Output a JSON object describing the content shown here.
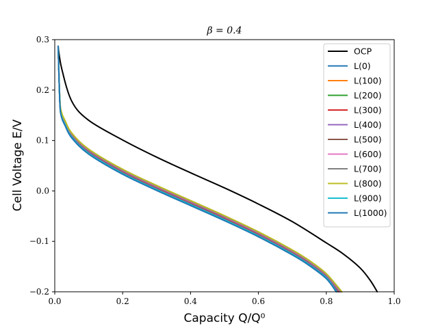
{
  "chart_data": {
    "type": "line",
    "title": "β = 0.4",
    "xlabel": "Capacity Q/Q⁰",
    "ylabel": "Cell Voltage E/V",
    "xlim": [
      0.0,
      1.0
    ],
    "ylim": [
      -0.2,
      0.3
    ],
    "xticks": [
      "0.0",
      "0.2",
      "0.4",
      "0.6",
      "0.8",
      "1.0"
    ],
    "yticks": [
      "−0.2",
      "−0.1",
      "0.0",
      "0.1",
      "0.2",
      "0.3"
    ],
    "grid": false,
    "legend_position": "top-right",
    "series": [
      {
        "name": "OCP",
        "color": "#000000",
        "x": [
          0.01,
          0.02,
          0.05,
          0.1,
          0.2,
          0.3,
          0.4,
          0.5,
          0.6,
          0.7,
          0.8,
          0.85,
          0.9,
          0.93,
          0.95
        ],
        "y": [
          0.287,
          0.244,
          0.178,
          0.14,
          0.101,
          0.067,
          0.036,
          0.006,
          -0.026,
          -0.061,
          -0.103,
          -0.125,
          -0.153,
          -0.178,
          -0.2
        ]
      },
      {
        "name": "L(0)",
        "color": "#1f77b4",
        "x": [
          0.01,
          0.015,
          0.02,
          0.03,
          0.05,
          0.1,
          0.2,
          0.3,
          0.4,
          0.5,
          0.6,
          0.7,
          0.75,
          0.8,
          0.83
        ],
        "y": [
          0.287,
          0.175,
          0.148,
          0.132,
          0.107,
          0.075,
          0.035,
          0.003,
          -0.027,
          -0.057,
          -0.089,
          -0.125,
          -0.146,
          -0.172,
          -0.2
        ]
      },
      {
        "name": "L(100)",
        "color": "#ff7f0e",
        "x": [
          0.01,
          0.015,
          0.02,
          0.03,
          0.05,
          0.1,
          0.2,
          0.3,
          0.4,
          0.5,
          0.6,
          0.7,
          0.75,
          0.8,
          0.832
        ],
        "y": [
          0.287,
          0.176,
          0.149,
          0.133,
          0.108,
          0.076,
          0.036,
          0.004,
          -0.026,
          -0.056,
          -0.088,
          -0.124,
          -0.145,
          -0.171,
          -0.2
        ]
      },
      {
        "name": "L(200)",
        "color": "#2ca02c",
        "x": [
          0.01,
          0.015,
          0.02,
          0.03,
          0.05,
          0.1,
          0.2,
          0.3,
          0.4,
          0.5,
          0.6,
          0.7,
          0.75,
          0.8,
          0.834
        ],
        "y": [
          0.287,
          0.177,
          0.15,
          0.134,
          0.109,
          0.077,
          0.037,
          0.005,
          -0.025,
          -0.055,
          -0.087,
          -0.123,
          -0.144,
          -0.17,
          -0.2
        ]
      },
      {
        "name": "L(300)",
        "color": "#d62728",
        "x": [
          0.01,
          0.015,
          0.02,
          0.03,
          0.05,
          0.1,
          0.2,
          0.3,
          0.4,
          0.5,
          0.6,
          0.7,
          0.75,
          0.8,
          0.836
        ],
        "y": [
          0.287,
          0.178,
          0.151,
          0.135,
          0.11,
          0.078,
          0.038,
          0.006,
          -0.024,
          -0.054,
          -0.086,
          -0.122,
          -0.143,
          -0.169,
          -0.2
        ]
      },
      {
        "name": "L(400)",
        "color": "#9467bd",
        "x": [
          0.01,
          0.015,
          0.02,
          0.03,
          0.05,
          0.1,
          0.2,
          0.3,
          0.4,
          0.5,
          0.6,
          0.7,
          0.75,
          0.8,
          0.838
        ],
        "y": [
          0.287,
          0.179,
          0.152,
          0.136,
          0.111,
          0.079,
          0.039,
          0.007,
          -0.023,
          -0.053,
          -0.085,
          -0.121,
          -0.142,
          -0.168,
          -0.2
        ]
      },
      {
        "name": "L(500)",
        "color": "#8c564b",
        "x": [
          0.01,
          0.015,
          0.02,
          0.03,
          0.05,
          0.1,
          0.2,
          0.3,
          0.4,
          0.5,
          0.6,
          0.7,
          0.75,
          0.8,
          0.84
        ],
        "y": [
          0.287,
          0.18,
          0.153,
          0.137,
          0.112,
          0.08,
          0.04,
          0.008,
          -0.022,
          -0.052,
          -0.084,
          -0.12,
          -0.141,
          -0.167,
          -0.2
        ]
      },
      {
        "name": "L(600)",
        "color": "#e377c2",
        "x": [
          0.01,
          0.015,
          0.02,
          0.03,
          0.05,
          0.1,
          0.2,
          0.3,
          0.4,
          0.5,
          0.6,
          0.7,
          0.75,
          0.8,
          0.842
        ],
        "y": [
          0.287,
          0.181,
          0.154,
          0.138,
          0.113,
          0.081,
          0.041,
          0.009,
          -0.021,
          -0.051,
          -0.083,
          -0.119,
          -0.14,
          -0.166,
          -0.2
        ]
      },
      {
        "name": "L(700)",
        "color": "#7f7f7f",
        "x": [
          0.01,
          0.015,
          0.02,
          0.03,
          0.05,
          0.1,
          0.2,
          0.3,
          0.4,
          0.5,
          0.6,
          0.7,
          0.75,
          0.8,
          0.844
        ],
        "y": [
          0.287,
          0.182,
          0.155,
          0.139,
          0.114,
          0.082,
          0.042,
          0.01,
          -0.02,
          -0.05,
          -0.082,
          -0.118,
          -0.139,
          -0.165,
          -0.2
        ]
      },
      {
        "name": "L(800)",
        "color": "#bcbd22",
        "x": [
          0.01,
          0.015,
          0.02,
          0.03,
          0.05,
          0.1,
          0.2,
          0.3,
          0.4,
          0.5,
          0.6,
          0.7,
          0.75,
          0.8,
          0.846
        ],
        "y": [
          0.287,
          0.183,
          0.156,
          0.14,
          0.115,
          0.083,
          0.043,
          0.011,
          -0.019,
          -0.049,
          -0.081,
          -0.117,
          -0.138,
          -0.164,
          -0.2
        ]
      },
      {
        "name": "L(900)",
        "color": "#17becf",
        "x": [
          0.01,
          0.015,
          0.02,
          0.03,
          0.05,
          0.1,
          0.2,
          0.3,
          0.4,
          0.5,
          0.6,
          0.7,
          0.75,
          0.8,
          0.831
        ],
        "y": [
          0.287,
          0.176,
          0.148,
          0.132,
          0.107,
          0.075,
          0.035,
          0.003,
          -0.027,
          -0.057,
          -0.089,
          -0.125,
          -0.146,
          -0.172,
          -0.2
        ]
      },
      {
        "name": "L(1000)",
        "color": "#1f77b4",
        "x": [
          0.01,
          0.015,
          0.02,
          0.03,
          0.05,
          0.1,
          0.2,
          0.3,
          0.4,
          0.5,
          0.6,
          0.7,
          0.75,
          0.8,
          0.829
        ],
        "y": [
          0.287,
          0.174,
          0.146,
          0.13,
          0.105,
          0.073,
          0.033,
          0.001,
          -0.029,
          -0.059,
          -0.091,
          -0.127,
          -0.148,
          -0.174,
          -0.2
        ]
      }
    ]
  }
}
